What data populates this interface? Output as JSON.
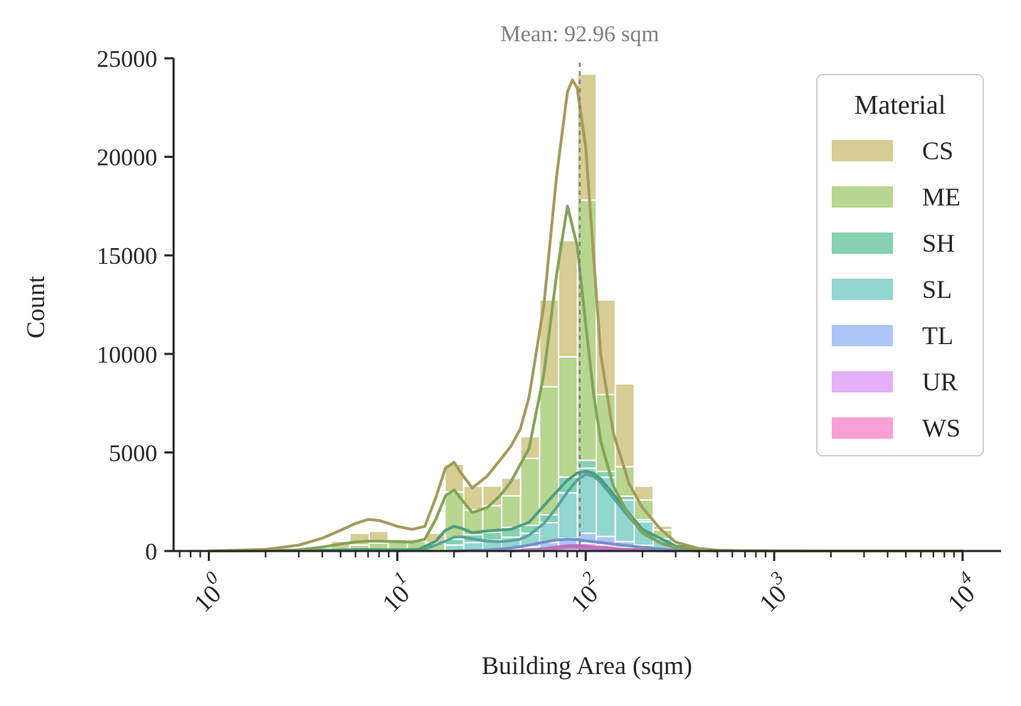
{
  "chart_data": {
    "type": "bar",
    "subtype": "stacked-histogram-with-kde",
    "title": "",
    "xlabel": "Building Area (sqm)",
    "ylabel": "Count",
    "x_scale": "log",
    "xlim": [
      0.65,
      16000
    ],
    "ylim": [
      0,
      25000
    ],
    "yticks": [
      0,
      5000,
      10000,
      15000,
      20000,
      25000
    ],
    "xticks": [
      {
        "value": 1,
        "base": "10",
        "exp": "0"
      },
      {
        "value": 10,
        "base": "10",
        "exp": "1"
      },
      {
        "value": 100,
        "base": "10",
        "exp": "2"
      },
      {
        "value": 1000,
        "base": "10",
        "exp": "3"
      },
      {
        "value": 10000,
        "base": "10",
        "exp": "4"
      }
    ],
    "mean_line": {
      "value": 92.96,
      "label": "Mean: 92.96 sqm",
      "color": "#808080"
    },
    "legend": {
      "title": "Material",
      "position": "upper-right"
    },
    "bin_edges": [
      4.45,
      5.6,
      7.1,
      8.95,
      11.3,
      14.2,
      17.9,
      22.5,
      28.4,
      35.8,
      45.1,
      56.9,
      71.7,
      90.4,
      113.9,
      143.6,
      181.0,
      228.2,
      287.6,
      362.5
    ],
    "series": [
      {
        "name": "WS",
        "color": "#f77fcb",
        "values": [
          0,
          0,
          0,
          0,
          0,
          0,
          0,
          0,
          0,
          0,
          0,
          50,
          120,
          250,
          200,
          120,
          60,
          20,
          0
        ],
        "kde_x": [
          40,
          50,
          60,
          70,
          80,
          90,
          100,
          120,
          150,
          200,
          300
        ],
        "kde_y": [
          0,
          50,
          120,
          200,
          260,
          270,
          240,
          180,
          110,
          50,
          0
        ]
      },
      {
        "name": "UR",
        "color": "#dc95f5",
        "values": [
          0,
          0,
          0,
          0,
          0,
          0,
          0,
          0,
          0,
          0,
          0,
          40,
          80,
          150,
          120,
          60,
          30,
          0,
          0
        ],
        "kde_x": [
          40,
          50,
          60,
          70,
          80,
          90,
          100,
          120,
          150,
          200,
          300
        ],
        "kde_y": [
          0,
          30,
          80,
          130,
          170,
          170,
          150,
          110,
          60,
          20,
          0
        ]
      },
      {
        "name": "TL",
        "color": "#8fb1f6",
        "values": [
          0,
          0,
          0,
          0,
          0,
          0,
          0,
          30,
          50,
          100,
          200,
          350,
          450,
          500,
          420,
          300,
          200,
          100,
          30
        ],
        "kde_x": [
          20,
          30,
          40,
          50,
          60,
          70,
          80,
          90,
          100,
          120,
          150,
          200,
          250,
          300,
          400
        ],
        "kde_y": [
          0,
          50,
          150,
          300,
          450,
          560,
          600,
          580,
          520,
          430,
          320,
          190,
          100,
          40,
          0
        ]
      },
      {
        "name": "SL",
        "color": "#6dc8c0",
        "values": [
          0,
          0,
          0,
          0,
          0,
          0,
          300,
          400,
          500,
          600,
          700,
          1000,
          2300,
          3300,
          3000,
          2100,
          1200,
          500,
          200
        ],
        "kde_x": [
          10,
          14,
          16,
          18,
          20,
          22,
          25,
          30,
          35,
          40,
          45,
          50,
          60,
          70,
          80,
          90,
          100,
          110,
          120,
          140,
          170,
          200,
          250,
          300,
          400,
          500
        ],
        "kde_y": [
          0,
          100,
          300,
          500,
          700,
          720,
          620,
          500,
          480,
          520,
          600,
          800,
          1400,
          2200,
          3000,
          3600,
          3900,
          3800,
          3500,
          2700,
          1700,
          1000,
          400,
          150,
          30,
          0
        ]
      },
      {
        "name": "SH",
        "color": "#5cc198",
        "values": [
          0,
          0,
          0,
          0,
          0,
          0,
          300,
          400,
          400,
          500,
          400,
          400,
          800,
          400,
          300,
          200,
          100,
          0,
          0
        ],
        "kde_x": [
          1,
          3,
          5,
          7,
          10,
          13,
          16,
          18,
          20,
          22,
          25,
          30,
          40,
          50,
          60,
          70,
          80,
          90,
          100,
          110,
          120,
          140,
          170,
          200,
          300,
          500,
          1000
        ],
        "kde_y": [
          0,
          20,
          60,
          70,
          60,
          80,
          500,
          1050,
          1250,
          1150,
          920,
          1020,
          1100,
          1450,
          2300,
          3000,
          3600,
          3950,
          4050,
          3950,
          3650,
          2900,
          1900,
          1100,
          250,
          30,
          0
        ]
      },
      {
        "name": "ME",
        "color": "#9fc86b",
        "values": [
          100,
          300,
          400,
          450,
          500,
          400,
          2400,
          1250,
          1350,
          1600,
          3400,
          6500,
          6100,
          13200,
          3900,
          1500,
          1000,
          450,
          100
        ],
        "kde_x": [
          1,
          2,
          3,
          4,
          5,
          6,
          7,
          8,
          10,
          12,
          14,
          16,
          18,
          20,
          22,
          25,
          30,
          35,
          40,
          50,
          60,
          70,
          80,
          90,
          100,
          110,
          120,
          140,
          170,
          200,
          250,
          300,
          400,
          500,
          1000,
          2000
        ],
        "kde_y": [
          0,
          20,
          60,
          200,
          350,
          460,
          500,
          500,
          470,
          450,
          600,
          1600,
          2800,
          3100,
          2600,
          1950,
          2200,
          2800,
          3500,
          5200,
          9000,
          14000,
          17500,
          15500,
          11500,
          8000,
          5600,
          3300,
          1800,
          900,
          400,
          200,
          60,
          20,
          5,
          0
        ]
      },
      {
        "name": "CS",
        "color": "#c9bc72",
        "values": [
          400,
          600,
          600,
          150,
          100,
          500,
          1400,
          1200,
          1000,
          900,
          1100,
          4400,
          5900,
          6400,
          4800,
          4200,
          700,
          200,
          50
        ],
        "kde_x": [
          1,
          2,
          3,
          4,
          5,
          6,
          7,
          8,
          9,
          10,
          12,
          14,
          16,
          18,
          20,
          22,
          25,
          30,
          35,
          40,
          45,
          50,
          60,
          70,
          80,
          85,
          90,
          100,
          110,
          120,
          140,
          170,
          200,
          250,
          300,
          400,
          500,
          700,
          1000,
          2000,
          5000,
          10000
        ],
        "kde_y": [
          0,
          80,
          300,
          650,
          1050,
          1400,
          1600,
          1550,
          1400,
          1250,
          1100,
          1250,
          2700,
          4200,
          4500,
          3900,
          3200,
          3800,
          4600,
          5300,
          6200,
          7800,
          12500,
          19000,
          23300,
          23900,
          23500,
          20500,
          15000,
          10000,
          6000,
          3400,
          2200,
          1100,
          450,
          120,
          40,
          15,
          5,
          2,
          1,
          0
        ]
      }
    ]
  }
}
